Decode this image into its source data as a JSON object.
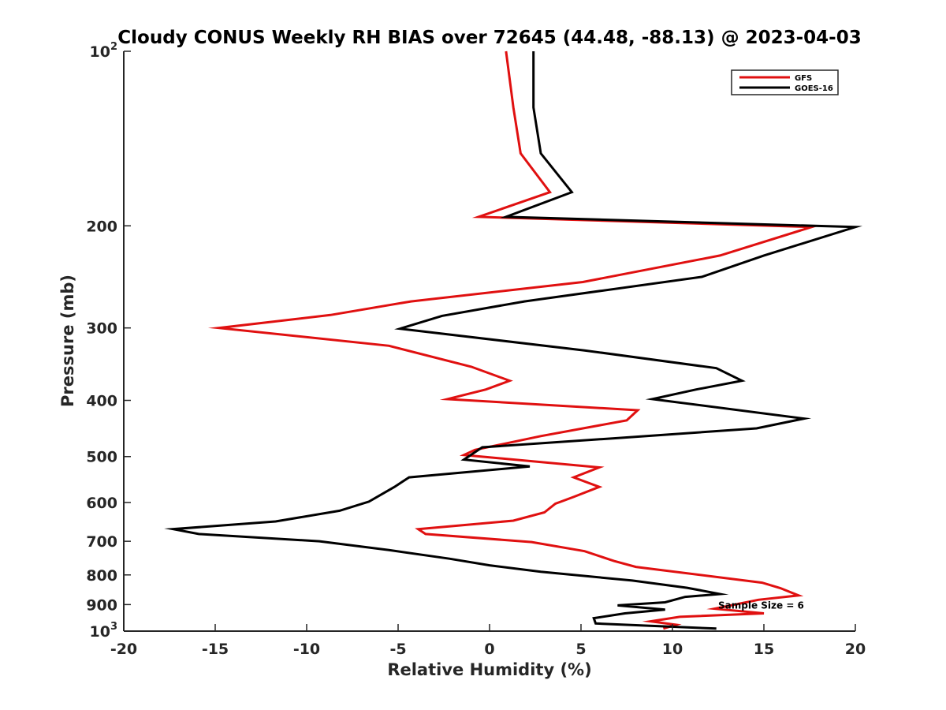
{
  "chart_data": {
    "type": "line",
    "title": "Cloudy CONUS Weekly RH BIAS over 72645 (44.48, -88.13) @ 2023-04-03",
    "xlabel": "Relative Humidity (%)",
    "ylabel": "Pressure (mb)",
    "xlim": [
      -20,
      20
    ],
    "ylim": [
      1000,
      100
    ],
    "y_scale": "log",
    "y_reversed": true,
    "grid": false,
    "legend_position": "top-right",
    "x_ticks": [
      -20,
      -15,
      -10,
      -5,
      0,
      5,
      10,
      15,
      20
    ],
    "x_tick_labels": [
      "-20",
      "-15",
      "-10",
      "-5",
      "0",
      "5",
      "10",
      "15",
      "20"
    ],
    "y_ticks": [
      {
        "value": 100,
        "base": "10",
        "exp": "2"
      },
      {
        "value": 200,
        "label": "200"
      },
      {
        "value": 300,
        "label": "300"
      },
      {
        "value": 400,
        "label": "400"
      },
      {
        "value": 500,
        "label": "500"
      },
      {
        "value": 600,
        "label": "600"
      },
      {
        "value": 700,
        "label": "700"
      },
      {
        "value": 800,
        "label": "800"
      },
      {
        "value": 900,
        "label": "900"
      },
      {
        "value": 1000,
        "base": "10",
        "exp": "3"
      }
    ],
    "annotations": [
      {
        "text": "Sample Size = 6",
        "x": 12.5,
        "y": 900
      }
    ],
    "series": [
      {
        "name": "GFS",
        "color": "#e01010",
        "points": [
          [
            0.9,
            100
          ],
          [
            1.3,
            125
          ],
          [
            1.7,
            150
          ],
          [
            3.3,
            175
          ],
          [
            -0.6,
            193
          ],
          [
            17.6,
            201
          ],
          [
            12.6,
            225
          ],
          [
            5.1,
            250
          ],
          [
            -4.3,
            270
          ],
          [
            -8.7,
            285
          ],
          [
            -14.8,
            300
          ],
          [
            -5.5,
            322
          ],
          [
            -1.0,
            350
          ],
          [
            1.1,
            370
          ],
          [
            -0.2,
            383
          ],
          [
            -2.3,
            398
          ],
          [
            8.1,
            416
          ],
          [
            7.5,
            433
          ],
          [
            2.8,
            461
          ],
          [
            -0.8,
            487
          ],
          [
            -1.4,
            497
          ],
          [
            6.0,
            522
          ],
          [
            4.6,
            543
          ],
          [
            6.0,
            564
          ],
          [
            4.6,
            587
          ],
          [
            3.6,
            603
          ],
          [
            3.0,
            624
          ],
          [
            1.3,
            645
          ],
          [
            -3.9,
            667
          ],
          [
            -3.5,
            680
          ],
          [
            2.3,
            702
          ],
          [
            5.2,
            728
          ],
          [
            6.8,
            757
          ],
          [
            8.0,
            775
          ],
          [
            14.9,
            825
          ],
          [
            15.9,
            843
          ],
          [
            16.9,
            868
          ],
          [
            14.7,
            883
          ],
          [
            12.3,
            915
          ],
          [
            15.0,
            932
          ],
          [
            10.4,
            945
          ],
          [
            8.8,
            962
          ],
          [
            10.2,
            975
          ],
          [
            9.5,
            990
          ]
        ]
      },
      {
        "name": "GOES-16",
        "color": "#000000",
        "points": [
          [
            2.4,
            100
          ],
          [
            2.4,
            125
          ],
          [
            2.8,
            150
          ],
          [
            4.5,
            175
          ],
          [
            0.9,
            193
          ],
          [
            20.0,
            201
          ],
          [
            15.0,
            225
          ],
          [
            11.6,
            245
          ],
          [
            1.9,
            270
          ],
          [
            -2.6,
            286
          ],
          [
            -4.9,
            301
          ],
          [
            5.2,
            328
          ],
          [
            12.4,
            352
          ],
          [
            13.8,
            370
          ],
          [
            11.3,
            383
          ],
          [
            8.9,
            398
          ],
          [
            17.2,
            430
          ],
          [
            14.6,
            447
          ],
          [
            6.8,
            465
          ],
          [
            -0.4,
            482
          ],
          [
            -1.4,
            506
          ],
          [
            2.2,
            520
          ],
          [
            -4.4,
            543
          ],
          [
            -5.2,
            564
          ],
          [
            -6.6,
            598
          ],
          [
            -8.2,
            620
          ],
          [
            -11.7,
            647
          ],
          [
            -17.3,
            667
          ],
          [
            -15.9,
            680
          ],
          [
            -9.3,
            700
          ],
          [
            -5.5,
            725
          ],
          [
            -2.2,
            750
          ],
          [
            0.0,
            770
          ],
          [
            2.8,
            790
          ],
          [
            7.8,
            818
          ],
          [
            10.8,
            842
          ],
          [
            12.6,
            863
          ],
          [
            10.7,
            873
          ],
          [
            9.6,
            892
          ],
          [
            7.0,
            903
          ],
          [
            9.6,
            918
          ],
          [
            7.4,
            932
          ],
          [
            5.7,
            950
          ],
          [
            5.8,
            970
          ],
          [
            12.4,
            990
          ]
        ]
      }
    ]
  }
}
